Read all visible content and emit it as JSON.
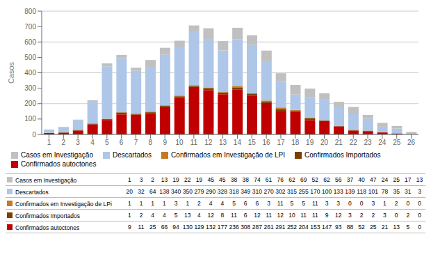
{
  "chart_data": {
    "type": "bar",
    "stacked": true,
    "ylabel": "Casos",
    "grid": true,
    "legend": "bottom",
    "categories": [
      1,
      2,
      3,
      4,
      5,
      6,
      7,
      8,
      9,
      10,
      11,
      12,
      13,
      14,
      15,
      16,
      17,
      18,
      19,
      20,
      21,
      22,
      23,
      24,
      25,
      26
    ],
    "ylim": [
      0,
      800
    ],
    "yticks": [
      0,
      100,
      200,
      300,
      400,
      500,
      600,
      700,
      800
    ],
    "series": [
      {
        "name": "Confirmados autoctones",
        "color": "#c00000",
        "values": [
          9,
          11,
          25,
          66,
          94,
          130,
          129,
          132,
          177,
          236,
          308,
          287,
          261,
          291,
          252,
          204,
          153,
          147,
          93,
          88,
          52,
          25,
          21,
          13,
          5,
          0
        ]
      },
      {
        "name": "Confirmados Importados",
        "color": "#7b3f00",
        "values": [
          1,
          2,
          4,
          4,
          5,
          13,
          4,
          12,
          8,
          11,
          6,
          12,
          11,
          12,
          10,
          11,
          11,
          9,
          12,
          3,
          2,
          2,
          3,
          0,
          2,
          0
        ]
      },
      {
        "name": "Confirmados em Investigação de LPI",
        "color": "#c87820",
        "values": [
          1,
          1,
          1,
          1,
          3,
          1,
          2,
          4,
          4,
          5,
          6,
          6,
          3,
          11,
          5,
          5,
          11,
          3,
          3,
          0,
          0,
          3,
          1,
          2,
          0,
          0
        ]
      },
      {
        "name": "Descartados",
        "color": "#aec6e8",
        "values": [
          20,
          32,
          64,
          138,
          340,
          350,
          279,
          290,
          328,
          318,
          349,
          310,
          270,
          302,
          315,
          255,
          170,
          100,
          133,
          139,
          118,
          101,
          78,
          35,
          31,
          3
        ]
      },
      {
        "name": "Casos em Investigação",
        "color": "#c0c0c0",
        "values": [
          1,
          3,
          2,
          13,
          19,
          22,
          19,
          45,
          45,
          38,
          38,
          74,
          61,
          76,
          62,
          69,
          52,
          62,
          56,
          37,
          40,
          47,
          24,
          25,
          17,
          13
        ]
      }
    ],
    "table_labels": [
      "Casos em Investigação",
      "Descartados",
      "Confirmados em Investigação de LPi",
      "Confirmados Importados",
      "Confirmados autoctones"
    ]
  }
}
